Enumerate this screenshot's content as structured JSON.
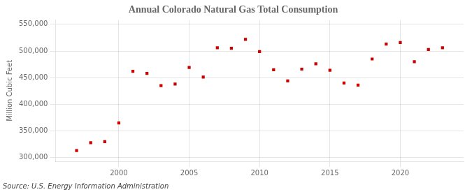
{
  "chart_data": {
    "type": "scatter",
    "title": "Annual Colorado Natural Gas Total Consumption",
    "ylabel": "Million Cubic Feet",
    "annotations": [
      "Source: U.S. Energy Information Administration"
    ],
    "x": [
      1997,
      1998,
      1999,
      2000,
      2001,
      2002,
      2003,
      2004,
      2005,
      2006,
      2007,
      2008,
      2009,
      2010,
      2011,
      2012,
      2013,
      2014,
      2015,
      2016,
      2017,
      2018,
      2019,
      2020,
      2021,
      2022,
      2023
    ],
    "values": [
      313000,
      328000,
      330000,
      365000,
      462000,
      458000,
      435000,
      438000,
      469000,
      451000,
      506000,
      505000,
      522000,
      499000,
      465000,
      444000,
      466000,
      476000,
      464000,
      440000,
      436000,
      485000,
      513000,
      516000,
      480000,
      503000,
      506000
    ],
    "color": "#cc0000",
    "marker": "square",
    "xlim": [
      1995.5,
      2024.5
    ],
    "xticks": [
      2000,
      2005,
      2010,
      2015,
      2020
    ],
    "ylim": [
      293000,
      558000
    ],
    "yticks": [
      {
        "value": 300000,
        "label": "300,000"
      },
      {
        "value": 350000,
        "label": "350,000"
      },
      {
        "value": 400000,
        "label": "400,000"
      },
      {
        "value": 450000,
        "label": "450,000"
      },
      {
        "value": 500000,
        "label": "500,000"
      },
      {
        "value": 550000,
        "label": "550,000"
      }
    ],
    "grid": true
  }
}
